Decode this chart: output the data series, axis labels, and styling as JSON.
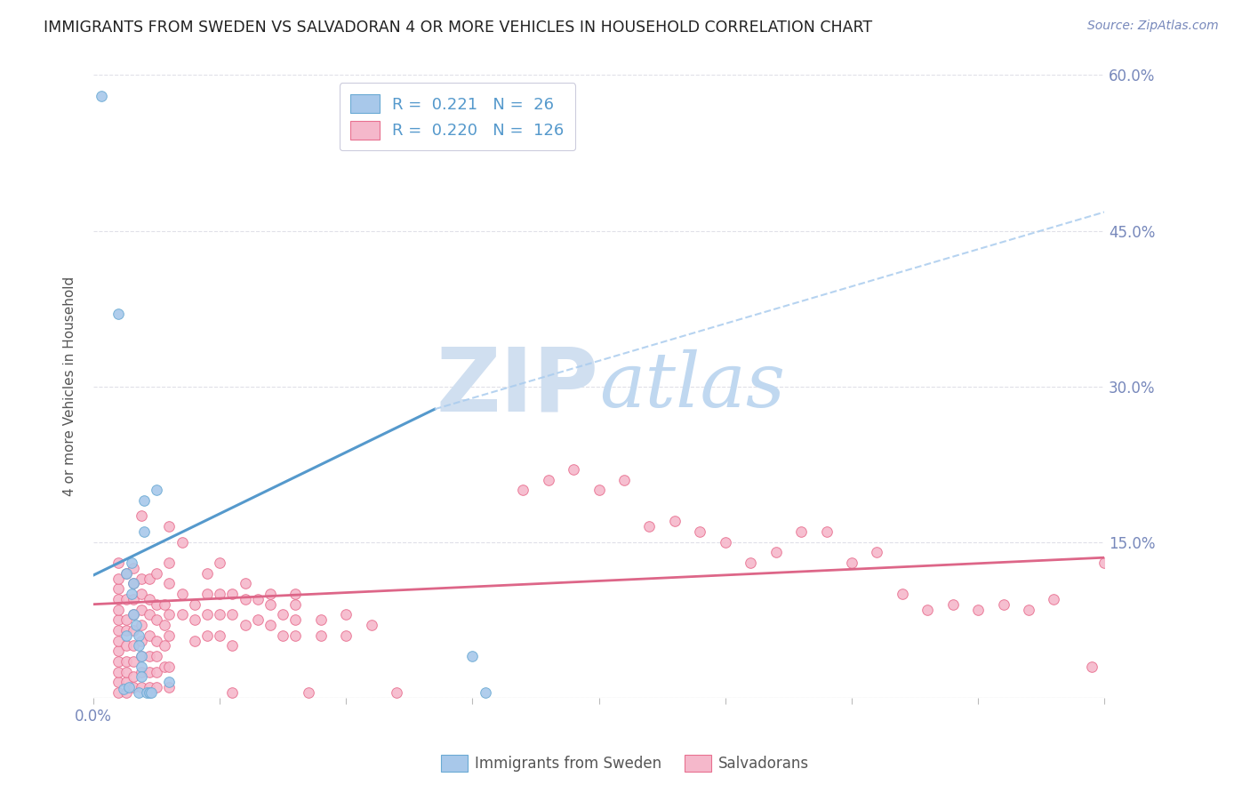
{
  "title": "IMMIGRANTS FROM SWEDEN VS SALVADORAN 4 OR MORE VEHICLES IN HOUSEHOLD CORRELATION CHART",
  "source": "Source: ZipAtlas.com",
  "ylabel": "4 or more Vehicles in Household",
  "xlim": [
    0.0,
    0.4
  ],
  "ylim": [
    0.0,
    0.6
  ],
  "xticks": [
    0.0,
    0.05,
    0.1,
    0.15,
    0.2,
    0.25,
    0.3,
    0.35,
    0.4
  ],
  "xticklabels_visible": {
    "0.0": "0.0%"
  },
  "yticks_right": [
    0.0,
    0.15,
    0.3,
    0.45,
    0.6
  ],
  "yticklabels_right": [
    "",
    "15.0%",
    "30.0%",
    "45.0%",
    "60.0%"
  ],
  "blue_R": 0.221,
  "blue_N": 26,
  "pink_R": 0.22,
  "pink_N": 126,
  "blue_scatter_color": "#a8c8ea",
  "blue_edge_color": "#6aaad4",
  "pink_scatter_color": "#f5b8cb",
  "pink_edge_color": "#e87090",
  "blue_line_color": "#5599cc",
  "pink_line_color": "#dd6688",
  "dash_line_color": "#aaccee",
  "blue_line": {
    "x0": 0.0,
    "y0": 0.118,
    "x1": 0.135,
    "y1": 0.278
  },
  "blue_dash_line": {
    "x0": 0.135,
    "y0": 0.278,
    "x1": 0.4,
    "y1": 0.468
  },
  "pink_line": {
    "x0": 0.0,
    "y0": 0.09,
    "x1": 0.4,
    "y1": 0.135
  },
  "blue_scatter": [
    [
      0.003,
      0.58
    ],
    [
      0.01,
      0.37
    ],
    [
      0.012,
      0.008
    ],
    [
      0.013,
      0.06
    ],
    [
      0.013,
      0.12
    ],
    [
      0.014,
      0.01
    ],
    [
      0.015,
      0.13
    ],
    [
      0.015,
      0.1
    ],
    [
      0.016,
      0.08
    ],
    [
      0.016,
      0.11
    ],
    [
      0.017,
      0.07
    ],
    [
      0.018,
      0.06
    ],
    [
      0.018,
      0.005
    ],
    [
      0.018,
      0.05
    ],
    [
      0.019,
      0.04
    ],
    [
      0.019,
      0.03
    ],
    [
      0.019,
      0.02
    ],
    [
      0.02,
      0.16
    ],
    [
      0.02,
      0.19
    ],
    [
      0.021,
      0.005
    ],
    [
      0.022,
      0.005
    ],
    [
      0.023,
      0.005
    ],
    [
      0.025,
      0.2
    ],
    [
      0.03,
      0.015
    ],
    [
      0.15,
      0.04
    ],
    [
      0.155,
      0.005
    ]
  ],
  "pink_scatter": [
    [
      0.01,
      0.005
    ],
    [
      0.01,
      0.015
    ],
    [
      0.01,
      0.025
    ],
    [
      0.01,
      0.035
    ],
    [
      0.01,
      0.045
    ],
    [
      0.01,
      0.055
    ],
    [
      0.01,
      0.065
    ],
    [
      0.01,
      0.075
    ],
    [
      0.01,
      0.085
    ],
    [
      0.01,
      0.095
    ],
    [
      0.01,
      0.105
    ],
    [
      0.01,
      0.115
    ],
    [
      0.01,
      0.13
    ],
    [
      0.013,
      0.005
    ],
    [
      0.013,
      0.015
    ],
    [
      0.013,
      0.025
    ],
    [
      0.013,
      0.035
    ],
    [
      0.013,
      0.05
    ],
    [
      0.013,
      0.065
    ],
    [
      0.013,
      0.075
    ],
    [
      0.013,
      0.095
    ],
    [
      0.013,
      0.12
    ],
    [
      0.016,
      0.01
    ],
    [
      0.016,
      0.02
    ],
    [
      0.016,
      0.035
    ],
    [
      0.016,
      0.05
    ],
    [
      0.016,
      0.065
    ],
    [
      0.016,
      0.08
    ],
    [
      0.016,
      0.095
    ],
    [
      0.016,
      0.11
    ],
    [
      0.016,
      0.125
    ],
    [
      0.019,
      0.01
    ],
    [
      0.019,
      0.025
    ],
    [
      0.019,
      0.04
    ],
    [
      0.019,
      0.055
    ],
    [
      0.019,
      0.07
    ],
    [
      0.019,
      0.085
    ],
    [
      0.019,
      0.1
    ],
    [
      0.019,
      0.115
    ],
    [
      0.019,
      0.175
    ],
    [
      0.022,
      0.01
    ],
    [
      0.022,
      0.025
    ],
    [
      0.022,
      0.04
    ],
    [
      0.022,
      0.06
    ],
    [
      0.022,
      0.08
    ],
    [
      0.022,
      0.095
    ],
    [
      0.022,
      0.115
    ],
    [
      0.025,
      0.01
    ],
    [
      0.025,
      0.025
    ],
    [
      0.025,
      0.04
    ],
    [
      0.025,
      0.055
    ],
    [
      0.025,
      0.075
    ],
    [
      0.025,
      0.09
    ],
    [
      0.025,
      0.12
    ],
    [
      0.028,
      0.03
    ],
    [
      0.028,
      0.05
    ],
    [
      0.028,
      0.07
    ],
    [
      0.028,
      0.09
    ],
    [
      0.03,
      0.01
    ],
    [
      0.03,
      0.03
    ],
    [
      0.03,
      0.06
    ],
    [
      0.03,
      0.08
    ],
    [
      0.03,
      0.11
    ],
    [
      0.03,
      0.13
    ],
    [
      0.03,
      0.165
    ],
    [
      0.035,
      0.08
    ],
    [
      0.035,
      0.1
    ],
    [
      0.035,
      0.15
    ],
    [
      0.04,
      0.055
    ],
    [
      0.04,
      0.075
    ],
    [
      0.04,
      0.09
    ],
    [
      0.045,
      0.06
    ],
    [
      0.045,
      0.08
    ],
    [
      0.045,
      0.1
    ],
    [
      0.045,
      0.12
    ],
    [
      0.05,
      0.06
    ],
    [
      0.05,
      0.08
    ],
    [
      0.05,
      0.1
    ],
    [
      0.05,
      0.13
    ],
    [
      0.055,
      0.005
    ],
    [
      0.055,
      0.05
    ],
    [
      0.055,
      0.08
    ],
    [
      0.055,
      0.1
    ],
    [
      0.06,
      0.07
    ],
    [
      0.06,
      0.095
    ],
    [
      0.06,
      0.11
    ],
    [
      0.065,
      0.075
    ],
    [
      0.065,
      0.095
    ],
    [
      0.07,
      0.07
    ],
    [
      0.07,
      0.09
    ],
    [
      0.07,
      0.1
    ],
    [
      0.075,
      0.06
    ],
    [
      0.075,
      0.08
    ],
    [
      0.08,
      0.06
    ],
    [
      0.08,
      0.075
    ],
    [
      0.08,
      0.09
    ],
    [
      0.08,
      0.1
    ],
    [
      0.085,
      0.005
    ],
    [
      0.09,
      0.06
    ],
    [
      0.09,
      0.075
    ],
    [
      0.1,
      0.06
    ],
    [
      0.1,
      0.08
    ],
    [
      0.11,
      0.07
    ],
    [
      0.12,
      0.005
    ],
    [
      0.17,
      0.2
    ],
    [
      0.18,
      0.21
    ],
    [
      0.19,
      0.22
    ],
    [
      0.2,
      0.2
    ],
    [
      0.21,
      0.21
    ],
    [
      0.22,
      0.165
    ],
    [
      0.23,
      0.17
    ],
    [
      0.24,
      0.16
    ],
    [
      0.25,
      0.15
    ],
    [
      0.26,
      0.13
    ],
    [
      0.27,
      0.14
    ],
    [
      0.28,
      0.16
    ],
    [
      0.29,
      0.16
    ],
    [
      0.3,
      0.13
    ],
    [
      0.31,
      0.14
    ],
    [
      0.32,
      0.1
    ],
    [
      0.33,
      0.085
    ],
    [
      0.34,
      0.09
    ],
    [
      0.35,
      0.085
    ],
    [
      0.36,
      0.09
    ],
    [
      0.37,
      0.085
    ],
    [
      0.38,
      0.095
    ],
    [
      0.395,
      0.03
    ],
    [
      0.4,
      0.13
    ]
  ],
  "watermark_zip": "ZIP",
  "watermark_atlas": "atlas",
  "watermark_color_zip": "#d0dff0",
  "watermark_color_atlas": "#c0d8f0",
  "legend_blue_label": "Immigrants from Sweden",
  "legend_pink_label": "Salvadorans",
  "background_color": "#ffffff",
  "grid_color": "#e0e0e8",
  "title_color": "#222222",
  "axis_label_color": "#555555",
  "tick_label_color": "#7788bb"
}
